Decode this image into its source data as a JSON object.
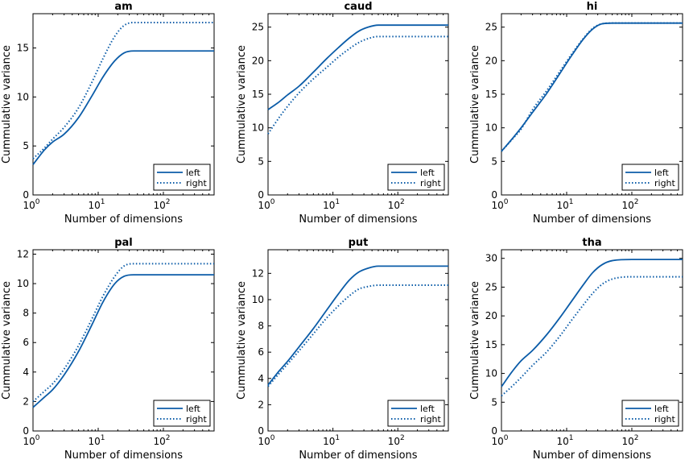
{
  "chart_data": [
    {
      "type": "line",
      "title": "am",
      "xlabel": "Number of dimensions",
      "ylabel": "Cummulative variance",
      "xscale": "log",
      "xlim": [
        1,
        600
      ],
      "ylim": [
        0,
        18.5
      ],
      "xticks": [
        {
          "label_base": "10",
          "label_exp": "0",
          "value": 1
        },
        {
          "label_base": "10",
          "label_exp": "1",
          "value": 10
        },
        {
          "label_base": "10",
          "label_exp": "2",
          "value": 100
        }
      ],
      "yticks": [
        {
          "label": "0",
          "value": 0
        },
        {
          "label": "5",
          "value": 5
        },
        {
          "label": "10",
          "value": 10
        },
        {
          "label": "15",
          "value": 15
        }
      ],
      "legend": {
        "position": "bottom-right",
        "entries": [
          "left",
          "right"
        ]
      },
      "series": [
        {
          "name": "left",
          "style": "solid",
          "x": [
            1,
            1.5,
            2,
            3,
            5,
            8,
            12,
            18,
            25,
            35,
            50,
            100,
            600
          ],
          "y": [
            3.1,
            4.6,
            5.4,
            6.2,
            7.9,
            10.1,
            12.1,
            13.7,
            14.5,
            14.7,
            14.7,
            14.7,
            14.7
          ]
        },
        {
          "name": "right",
          "style": "dotted",
          "x": [
            1,
            1.5,
            2,
            3,
            5,
            8,
            12,
            18,
            25,
            35,
            50,
            100,
            600
          ],
          "y": [
            3.7,
            4.8,
            5.7,
            6.9,
            8.9,
            11.5,
            14.0,
            16.2,
            17.3,
            17.6,
            17.6,
            17.6,
            17.6
          ]
        }
      ]
    },
    {
      "type": "line",
      "title": "caud",
      "xlabel": "Number of dimensions",
      "ylabel": "Cummulative variance",
      "xscale": "log",
      "xlim": [
        1,
        600
      ],
      "ylim": [
        0,
        27
      ],
      "xticks": [
        {
          "label_base": "10",
          "label_exp": "0",
          "value": 1
        },
        {
          "label_base": "10",
          "label_exp": "1",
          "value": 10
        },
        {
          "label_base": "10",
          "label_exp": "2",
          "value": 100
        }
      ],
      "yticks": [
        {
          "label": "0",
          "value": 0
        },
        {
          "label": "5",
          "value": 5
        },
        {
          "label": "10",
          "value": 10
        },
        {
          "label": "15",
          "value": 15
        },
        {
          "label": "20",
          "value": 20
        },
        {
          "label": "25",
          "value": 25
        }
      ],
      "legend": {
        "position": "bottom-right",
        "entries": [
          "left",
          "right"
        ]
      },
      "series": [
        {
          "name": "left",
          "style": "solid",
          "x": [
            1,
            1.5,
            2,
            3,
            5,
            8,
            12,
            18,
            25,
            35,
            50,
            100,
            600
          ],
          "y": [
            12.7,
            13.9,
            14.9,
            16.2,
            18.3,
            20.3,
            21.9,
            23.4,
            24.4,
            25.0,
            25.3,
            25.3,
            25.3
          ]
        },
        {
          "name": "right",
          "style": "dotted",
          "x": [
            1,
            1.5,
            2,
            3,
            5,
            8,
            12,
            18,
            25,
            35,
            50,
            100,
            600
          ],
          "y": [
            9.1,
            11.6,
            13.2,
            15.2,
            17.3,
            19.0,
            20.5,
            21.8,
            22.7,
            23.3,
            23.6,
            23.6,
            23.6
          ]
        }
      ]
    },
    {
      "type": "line",
      "title": "hi",
      "xlabel": "Number of dimensions",
      "ylabel": "Cummulative variance",
      "xscale": "log",
      "xlim": [
        1,
        600
      ],
      "ylim": [
        0,
        27
      ],
      "xticks": [
        {
          "label_base": "10",
          "label_exp": "0",
          "value": 1
        },
        {
          "label_base": "10",
          "label_exp": "1",
          "value": 10
        },
        {
          "label_base": "10",
          "label_exp": "2",
          "value": 100
        }
      ],
      "yticks": [
        {
          "label": "0",
          "value": 0
        },
        {
          "label": "5",
          "value": 5
        },
        {
          "label": "10",
          "value": 10
        },
        {
          "label": "15",
          "value": 15
        },
        {
          "label": "20",
          "value": 20
        },
        {
          "label": "25",
          "value": 25
        }
      ],
      "legend": {
        "position": "bottom-right",
        "entries": [
          "left",
          "right"
        ]
      },
      "series": [
        {
          "name": "left",
          "style": "solid",
          "x": [
            1,
            1.5,
            2,
            3,
            5,
            8,
            12,
            18,
            25,
            35,
            50,
            100,
            600
          ],
          "y": [
            6.5,
            8.5,
            10.0,
            12.3,
            15.2,
            18.2,
            20.8,
            23.2,
            24.7,
            25.5,
            25.6,
            25.6,
            25.6
          ]
        },
        {
          "name": "right",
          "style": "dotted",
          "x": [
            1,
            1.5,
            2,
            3,
            5,
            8,
            12,
            18,
            25,
            35,
            50,
            100,
            600
          ],
          "y": [
            6.5,
            8.4,
            9.8,
            12.7,
            15.6,
            18.5,
            21.0,
            23.3,
            24.8,
            25.5,
            25.6,
            25.6,
            25.6
          ]
        }
      ]
    },
    {
      "type": "line",
      "title": "pal",
      "xlabel": "Number of dimensions",
      "ylabel": "Cummulative variance",
      "xscale": "log",
      "xlim": [
        1,
        600
      ],
      "ylim": [
        0,
        12.3
      ],
      "xticks": [
        {
          "label_base": "10",
          "label_exp": "0",
          "value": 1
        },
        {
          "label_base": "10",
          "label_exp": "1",
          "value": 10
        },
        {
          "label_base": "10",
          "label_exp": "2",
          "value": 100
        }
      ],
      "yticks": [
        {
          "label": "0",
          "value": 0
        },
        {
          "label": "2",
          "value": 2
        },
        {
          "label": "4",
          "value": 4
        },
        {
          "label": "6",
          "value": 6
        },
        {
          "label": "8",
          "value": 8
        },
        {
          "label": "10",
          "value": 10
        },
        {
          "label": "12",
          "value": 12
        }
      ],
      "legend": {
        "position": "bottom-right",
        "entries": [
          "left",
          "right"
        ]
      },
      "series": [
        {
          "name": "left",
          "style": "solid",
          "x": [
            1,
            1.5,
            2,
            3,
            5,
            8,
            12,
            18,
            25,
            35,
            50,
            100,
            600
          ],
          "y": [
            1.6,
            2.3,
            2.8,
            3.8,
            5.4,
            7.2,
            8.8,
            10.0,
            10.5,
            10.6,
            10.6,
            10.6,
            10.6
          ]
        },
        {
          "name": "right",
          "style": "dotted",
          "x": [
            1,
            1.5,
            2,
            3,
            5,
            8,
            12,
            18,
            25,
            35,
            50,
            100,
            600
          ],
          "y": [
            2.0,
            2.7,
            3.2,
            4.2,
            5.8,
            7.6,
            9.2,
            10.5,
            11.2,
            11.35,
            11.35,
            11.35,
            11.35
          ]
        }
      ]
    },
    {
      "type": "line",
      "title": "put",
      "xlabel": "Number of dimensions",
      "ylabel": "Cummulative variance",
      "xscale": "log",
      "xlim": [
        1,
        600
      ],
      "ylim": [
        0,
        13.8
      ],
      "xticks": [
        {
          "label_base": "10",
          "label_exp": "0",
          "value": 1
        },
        {
          "label_base": "10",
          "label_exp": "1",
          "value": 10
        },
        {
          "label_base": "10",
          "label_exp": "2",
          "value": 100
        }
      ],
      "yticks": [
        {
          "label": "0",
          "value": 0
        },
        {
          "label": "2",
          "value": 2
        },
        {
          "label": "4",
          "value": 4
        },
        {
          "label": "6",
          "value": 6
        },
        {
          "label": "8",
          "value": 8
        },
        {
          "label": "10",
          "value": 10
        },
        {
          "label": "12",
          "value": 12
        }
      ],
      "legend": {
        "position": "bottom-right",
        "entries": [
          "left",
          "right"
        ]
      },
      "series": [
        {
          "name": "left",
          "style": "solid",
          "x": [
            1,
            1.5,
            2,
            3,
            5,
            8,
            12,
            18,
            25,
            35,
            50,
            100,
            600
          ],
          "y": [
            3.5,
            4.6,
            5.3,
            6.4,
            7.8,
            9.2,
            10.4,
            11.5,
            12.1,
            12.4,
            12.55,
            12.55,
            12.55
          ]
        },
        {
          "name": "right",
          "style": "dotted",
          "x": [
            1,
            1.5,
            2,
            3,
            5,
            8,
            12,
            18,
            25,
            35,
            50,
            100,
            600
          ],
          "y": [
            3.4,
            4.4,
            5.1,
            6.1,
            7.4,
            8.6,
            9.5,
            10.3,
            10.8,
            11.0,
            11.1,
            11.1,
            11.1
          ]
        }
      ]
    },
    {
      "type": "line",
      "title": "tha",
      "xlabel": "Number of dimensions",
      "ylabel": "Cummulative variance",
      "xscale": "log",
      "xlim": [
        1,
        600
      ],
      "ylim": [
        0,
        31.5
      ],
      "xticks": [
        {
          "label_base": "10",
          "label_exp": "0",
          "value": 1
        },
        {
          "label_base": "10",
          "label_exp": "1",
          "value": 10
        },
        {
          "label_base": "10",
          "label_exp": "2",
          "value": 100
        }
      ],
      "yticks": [
        {
          "label": "0",
          "value": 0
        },
        {
          "label": "5",
          "value": 5
        },
        {
          "label": "10",
          "value": 10
        },
        {
          "label": "15",
          "value": 15
        },
        {
          "label": "20",
          "value": 20
        },
        {
          "label": "25",
          "value": 25
        },
        {
          "label": "30",
          "value": 30
        }
      ],
      "legend": {
        "position": "bottom-right",
        "entries": [
          "left",
          "right"
        ]
      },
      "series": [
        {
          "name": "left",
          "style": "solid",
          "x": [
            1,
            1.5,
            2,
            3,
            5,
            8,
            12,
            18,
            25,
            35,
            50,
            100,
            600
          ],
          "y": [
            7.7,
            10.5,
            12.2,
            14.0,
            16.8,
            19.8,
            22.6,
            25.4,
            27.5,
            28.9,
            29.6,
            29.8,
            29.8
          ]
        },
        {
          "name": "right",
          "style": "dotted",
          "x": [
            1,
            1.5,
            2,
            3,
            5,
            8,
            12,
            18,
            25,
            35,
            50,
            100,
            600
          ],
          "y": [
            6.1,
            7.9,
            9.3,
            11.4,
            13.8,
            16.6,
            19.3,
            21.9,
            23.9,
            25.5,
            26.4,
            26.8,
            26.8
          ]
        }
      ]
    }
  ],
  "colors": {
    "line": "#0b5ca8",
    "axis": "#000000",
    "background": "#ffffff"
  }
}
